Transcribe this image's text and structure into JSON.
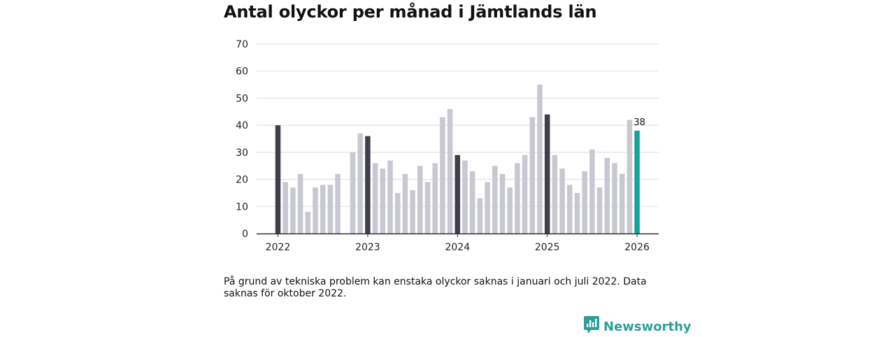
{
  "title": "Antal olyckor per månad i Jämtlands län",
  "note": "På grund av tekniska problem kan enstaka olyckor saknas i januari och juli 2022. Data saknas för oktober 2022.",
  "brand": {
    "name": "Newsworthy",
    "icon": "newsworthy-logo-icon"
  },
  "colors": {
    "bar": "#c8c8d2",
    "january": "#3f3f4b",
    "latest": "#12a39a",
    "grid": "#dddddd",
    "axis": "#333333"
  },
  "chart_data": {
    "type": "bar",
    "title": "Antal olyckor per månad i Jämtlands län",
    "xlabel": "",
    "ylabel": "",
    "ylim": [
      0,
      70
    ],
    "yticks": [
      0,
      10,
      20,
      30,
      40,
      50,
      60,
      70
    ],
    "xtick_labels": [
      "2022",
      "2023",
      "2024",
      "2025",
      "2026"
    ],
    "grid": true,
    "categories": [
      "2022-01",
      "2022-02",
      "2022-03",
      "2022-04",
      "2022-05",
      "2022-06",
      "2022-07",
      "2022-08",
      "2022-09",
      "2022-10",
      "2022-11",
      "2022-12",
      "2023-01",
      "2023-02",
      "2023-03",
      "2023-04",
      "2023-05",
      "2023-06",
      "2023-07",
      "2023-08",
      "2023-09",
      "2023-10",
      "2023-11",
      "2023-12",
      "2024-01",
      "2024-02",
      "2024-03",
      "2024-04",
      "2024-05",
      "2024-06",
      "2024-07",
      "2024-08",
      "2024-09",
      "2024-10",
      "2024-11",
      "2024-12",
      "2025-01",
      "2025-02",
      "2025-03",
      "2025-04",
      "2025-05",
      "2025-06",
      "2025-07",
      "2025-08",
      "2025-09",
      "2025-10",
      "2025-11",
      "2025-12",
      "2026-01"
    ],
    "values": [
      40,
      19,
      17,
      22,
      8,
      17,
      18,
      18,
      22,
      null,
      30,
      37,
      36,
      26,
      24,
      27,
      15,
      22,
      16,
      25,
      19,
      26,
      43,
      46,
      29,
      27,
      23,
      13,
      19,
      25,
      22,
      17,
      26,
      29,
      43,
      55,
      44,
      29,
      24,
      18,
      15,
      23,
      31,
      17,
      28,
      26,
      22,
      42,
      38
    ],
    "highlight": {
      "category": "2026-01",
      "value": 38,
      "label": "38"
    }
  }
}
